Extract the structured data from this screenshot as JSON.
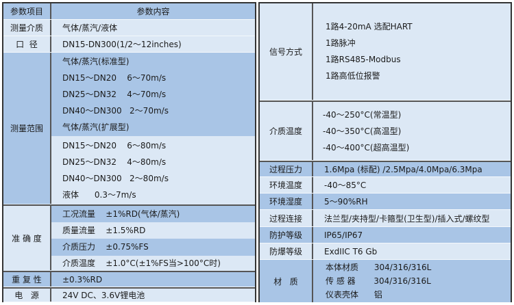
{
  "left": {
    "header": {
      "label": "参数项目",
      "content": "参数内容"
    },
    "medium": {
      "label": "测量介质",
      "value": "气体/蒸汽/液体"
    },
    "bore": {
      "label": "口  径",
      "value": "DN15-DN300(1/2～12inches)"
    },
    "range": {
      "label": "测量范围",
      "lines": [
        "气体/蒸汽(标准型)",
        "DN15～DN20    6～70m/s",
        "DN25～DN32    4～70m/s",
        "DN40～DN300   2～70m/s",
        "气体/蒸汽(扩展型)",
        "DN15～DN20    6～80m/s",
        "DN25～DN32    4～80m/s",
        "DN40～DN300   2～80m/s",
        "液体      0.3～7m/s"
      ]
    },
    "accuracy": {
      "label": "准 确 度",
      "lines": [
        "工况流量    ±1%RD(气体/蒸汽)",
        "质量流量    ±1.5%RD",
        "介质压力    ±0.75%FS",
        "介质温度    ±1.0°C(±1%FS当>100°C时)"
      ]
    },
    "repeat": {
      "label": "重 复 性",
      "value": "±0.3%RD"
    },
    "power": {
      "label": "电   源",
      "value": "24V DC、3.6V锂电池"
    }
  },
  "right": {
    "signal": {
      "label": "信号方式",
      "lines": [
        "1路4-20mA 选配HART",
        "1路脉冲",
        "1路RS485-Modbus",
        "1路高低位报警"
      ]
    },
    "mtemp": {
      "label": "介质温度",
      "lines": [
        "-40～250°C(常温型)",
        "-40～350°C(高温型)",
        "-40～400°C(超高温型)"
      ]
    },
    "rows": [
      {
        "label": "过程压力",
        "value": "1.6Mpa (标配) /2.5Mpa/4.0Mpa/6.3Mpa"
      },
      {
        "label": "环境温度",
        "value": "-40～85°C"
      },
      {
        "label": "环境湿度",
        "value": "5～90%RH"
      },
      {
        "label": "过程连接",
        "value": "法兰型/夹持型/卡箍型(卫生型)/插入式/螺纹型"
      },
      {
        "label": "防护等级",
        "value": "IP65/IP67"
      },
      {
        "label": "防爆等级",
        "value": "ExdIIC T6 Gb"
      }
    ],
    "material": {
      "label": "材   质",
      "lines": [
        "本体材质      304/316/316L",
        "传 感 器       304/316/316L",
        "仪表壳体      铝"
      ]
    }
  },
  "colors": {
    "dark": "#a9c5e6",
    "light": "#dce8f5",
    "border": "#333333"
  }
}
